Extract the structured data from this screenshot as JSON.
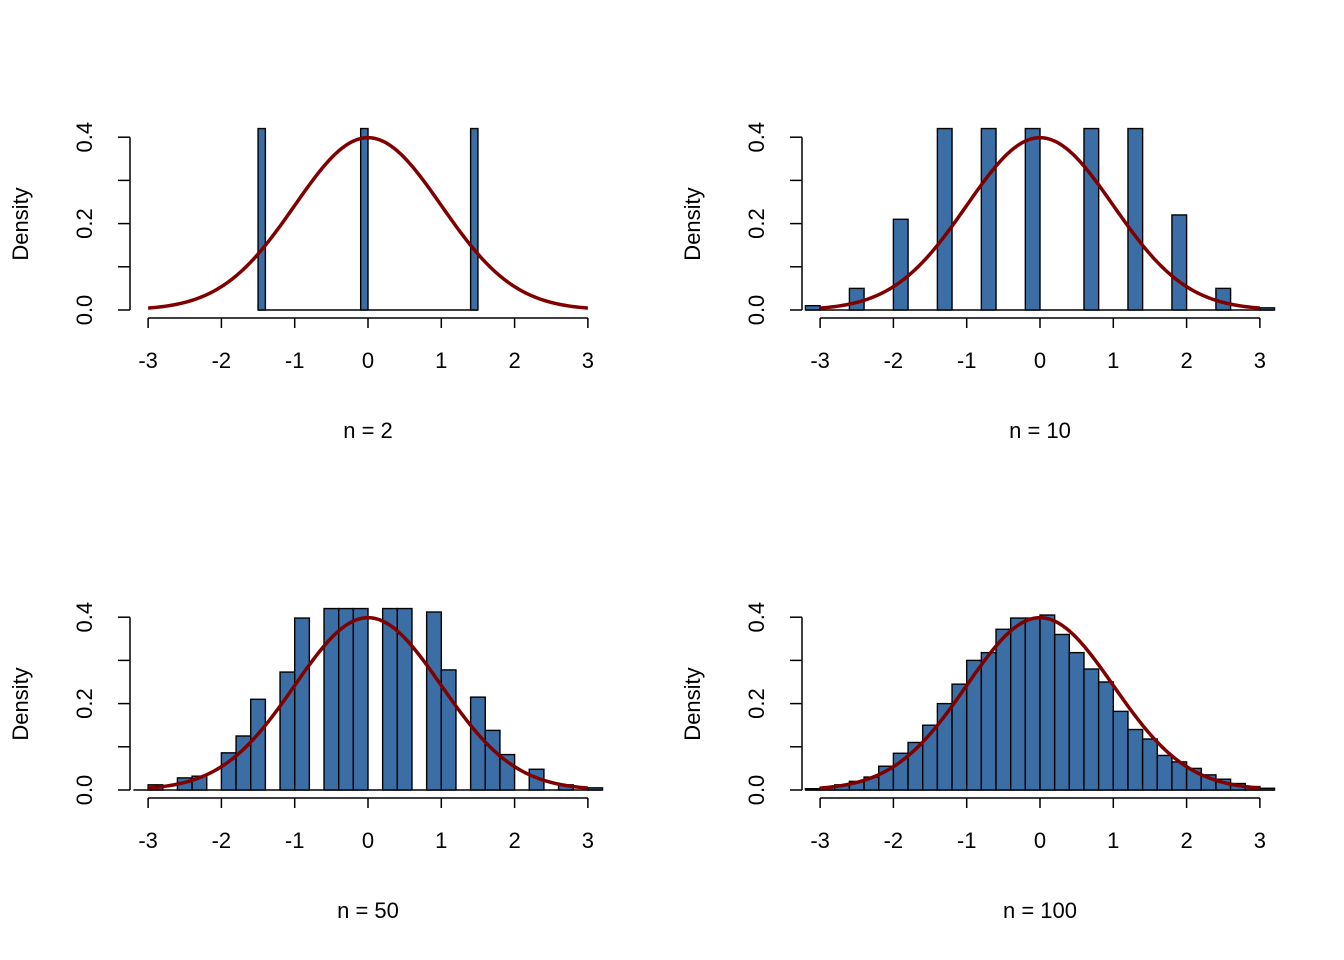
{
  "colors": {
    "bar_fill": "#3C6EA6",
    "curve": "#800000"
  },
  "chart_data": [
    {
      "type": "bar",
      "title": "",
      "xlabel": "n = 2",
      "ylabel": "Density",
      "xlim": [
        -3,
        3
      ],
      "ylim": [
        0,
        0.4
      ],
      "x_ticks": [
        "-3",
        "-2",
        "-1",
        "0",
        "1",
        "2",
        "3"
      ],
      "y_ticks": [
        "0.0",
        "0.2",
        "0.4"
      ],
      "bins": {
        "starts": [
          -1.5,
          -0.1,
          1.4
        ],
        "width": 0.1,
        "values": [
          0.42,
          0.42,
          0.42
        ]
      },
      "baseline_range": [
        -1.5,
        1.5
      ],
      "curve": "normal density (mean 0, sd 1) over [-3, 3]"
    },
    {
      "type": "bar",
      "title": "",
      "xlabel": "n = 10",
      "ylabel": "Density",
      "xlim": [
        -3,
        3
      ],
      "ylim": [
        0,
        0.4
      ],
      "x_ticks": [
        "-3",
        "-2",
        "-1",
        "0",
        "1",
        "2",
        "3"
      ],
      "y_ticks": [
        "0.0",
        "0.2",
        "0.4"
      ],
      "bins": {
        "starts": [
          -3.2,
          -2.6,
          -2.0,
          -1.4,
          -0.8,
          -0.2,
          0.6,
          1.2,
          1.8,
          2.4,
          3.0
        ],
        "width": 0.2,
        "values": [
          0.01,
          0.05,
          0.21,
          0.42,
          0.42,
          0.42,
          0.42,
          0.42,
          0.22,
          0.05,
          0.005
        ]
      },
      "baseline_range": [
        -3.2,
        3.2
      ],
      "curve": "normal density (mean 0, sd 1) over [-3, 3]"
    },
    {
      "type": "bar",
      "title": "",
      "xlabel": "n = 50",
      "ylabel": "Density",
      "xlim": [
        -3,
        3
      ],
      "ylim": [
        0,
        0.4
      ],
      "x_ticks": [
        "-3",
        "-2",
        "-1",
        "0",
        "1",
        "2",
        "3"
      ],
      "y_ticks": [
        "0.0",
        "0.2",
        "0.4"
      ],
      "bins": {
        "starts": [
          -3.0,
          -2.6,
          -2.4,
          -2.0,
          -1.8,
          -1.6,
          -1.2,
          -1.0,
          -0.6,
          -0.4,
          -0.2,
          0.2,
          0.4,
          0.8,
          1.0,
          1.4,
          1.6,
          1.8,
          2.2,
          2.6,
          3.0
        ],
        "width": 0.2,
        "values": [
          0.012,
          0.028,
          0.032,
          0.086,
          0.125,
          0.21,
          0.273,
          0.398,
          0.42,
          0.42,
          0.42,
          0.42,
          0.42,
          0.412,
          0.278,
          0.215,
          0.138,
          0.082,
          0.048,
          0.012,
          0.005
        ]
      },
      "baseline_range": [
        -3.2,
        3.2
      ],
      "curve": "normal density (mean 0, sd 1) over [-3, 3]"
    },
    {
      "type": "bar",
      "title": "",
      "xlabel": "n = 100",
      "ylabel": "Density",
      "xlim": [
        -3,
        3
      ],
      "ylim": [
        0,
        0.4
      ],
      "x_ticks": [
        "-3",
        "-2",
        "-1",
        "0",
        "1",
        "2",
        "3"
      ],
      "y_ticks": [
        "0.0",
        "0.2",
        "0.4"
      ],
      "bins": {
        "starts": [
          -3.2,
          -3.0,
          -2.8,
          -2.6,
          -2.4,
          -2.2,
          -2.0,
          -1.8,
          -1.6,
          -1.4,
          -1.2,
          -1.0,
          -0.8,
          -0.6,
          -0.4,
          -0.2,
          0.0,
          0.2,
          0.4,
          0.6,
          0.8,
          1.0,
          1.2,
          1.4,
          1.6,
          1.8,
          2.0,
          2.2,
          2.4,
          2.6,
          2.8,
          3.0
        ],
        "width": 0.2,
        "values": [
          0.003,
          0.006,
          0.012,
          0.02,
          0.03,
          0.055,
          0.085,
          0.11,
          0.15,
          0.2,
          0.245,
          0.3,
          0.318,
          0.372,
          0.398,
          0.398,
          0.405,
          0.36,
          0.318,
          0.28,
          0.25,
          0.182,
          0.14,
          0.118,
          0.08,
          0.065,
          0.05,
          0.035,
          0.025,
          0.015,
          0.008,
          0.004
        ]
      },
      "baseline_range": [
        -3.2,
        3.2
      ],
      "curve": "normal density (mean 0, sd 1) over [-3, 3]"
    }
  ]
}
